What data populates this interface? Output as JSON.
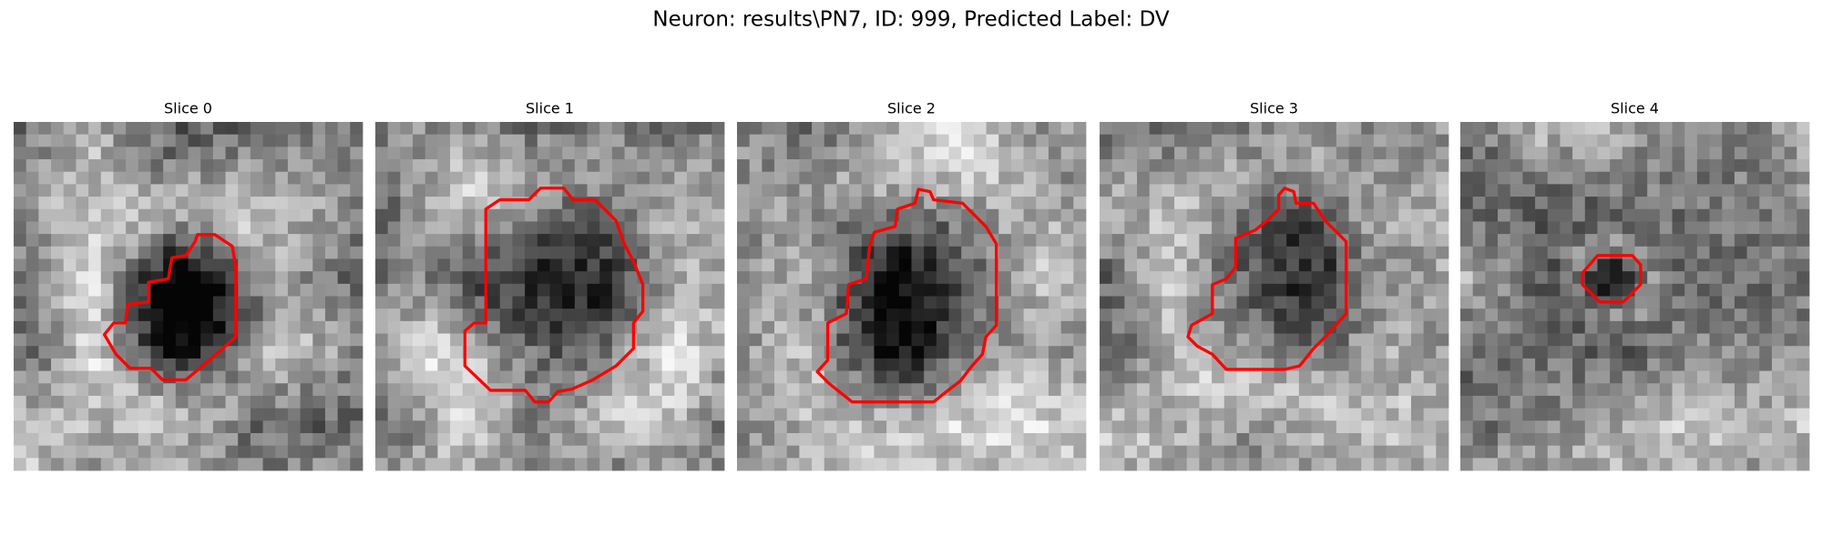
{
  "figure": {
    "title": "Neuron: results\\PN7, ID: 999, Predicted Label: DV",
    "panels": [
      {
        "title": "Slice 0"
      },
      {
        "title": "Slice 1"
      },
      {
        "title": "Slice 2"
      },
      {
        "title": "Slice 3"
      },
      {
        "title": "Slice 4"
      }
    ]
  }
}
